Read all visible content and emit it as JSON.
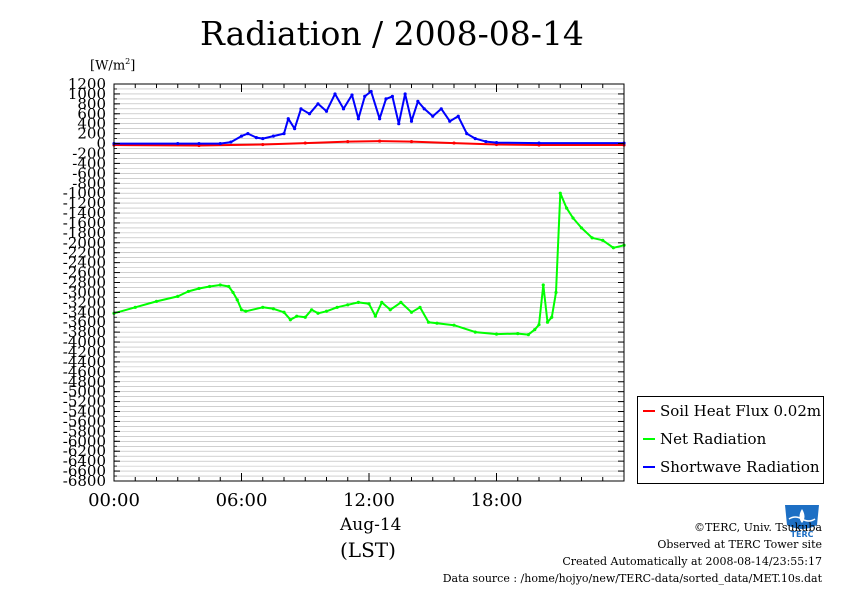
{
  "title": "Radiation / 2008-08-14",
  "unit": {
    "prefix": "[W/m",
    "sup": "2",
    "suffix": "]"
  },
  "xlabel_date": "Aug-14",
  "xlabel_tz": "(LST)",
  "legend": [
    {
      "name": "Soil Heat Flux 0.02m",
      "color": "#ff0000"
    },
    {
      "name": "Net Radiation",
      "color": "#00ff00"
    },
    {
      "name": "Shortwave Radiation",
      "color": "#0000ff"
    }
  ],
  "footer": {
    "copyright": "©TERC, Univ. Tsukuba",
    "site": "Observed at TERC Tower site",
    "created": "Created Automatically at 2008-08-14/23:55:17",
    "source": "Data source : /home/hojyo/new/TERC-data/sorted_data/MET.10s.dat"
  },
  "logo_text": "TERC",
  "chart_data": {
    "type": "line",
    "title": "Radiation / 2008-08-14",
    "ylabel": "[W/m2]",
    "xlabel": "Aug-14 (LST)",
    "ylim": [
      -6800,
      1200
    ],
    "yticks": [
      1200,
      1000,
      800,
      600,
      400,
      200,
      0,
      -200,
      -400,
      -600,
      -800,
      -1000,
      -1200,
      -1400,
      -1600,
      -1800,
      -2000,
      -2200,
      -2400,
      -2600,
      -2800,
      -3000,
      -3200,
      -3400,
      -3600,
      -3800,
      -4000,
      -4200,
      -4400,
      -4600,
      -4800,
      -5000,
      -5200,
      -5400,
      -5600,
      -5800,
      -6000,
      -6200,
      -6400,
      -6600,
      -6800
    ],
    "xlim": [
      0,
      24
    ],
    "xticks": [
      {
        "v": 0,
        "label": "00:00"
      },
      {
        "v": 6,
        "label": "06:00"
      },
      {
        "v": 12,
        "label": "12:00"
      },
      {
        "v": 18,
        "label": "18:00"
      }
    ],
    "grid": true,
    "legend_position": "bottom-right, outside plot",
    "series": [
      {
        "name": "Soil Heat Flux 0.02m",
        "color": "#ff0000",
        "x": [
          0,
          4,
          7,
          9,
          11,
          12.5,
          14,
          16,
          18,
          20,
          24
        ],
        "y": [
          -30,
          -40,
          -20,
          10,
          40,
          50,
          40,
          10,
          -20,
          -30,
          -30
        ]
      },
      {
        "name": "Net Radiation",
        "color": "#00ff00",
        "x": [
          0,
          1,
          2,
          3,
          3.5,
          4,
          4.5,
          5,
          5.4,
          5.6,
          5.8,
          6,
          6.2,
          7,
          7.5,
          8,
          8.3,
          8.6,
          9,
          9.3,
          9.6,
          10,
          10.5,
          11,
          11.5,
          12,
          12.3,
          12.6,
          13,
          13.5,
          14,
          14.4,
          14.8,
          15.2,
          16,
          17,
          18,
          19,
          19.5,
          19.8,
          20,
          20.2,
          20.4,
          20.6,
          20.8,
          21,
          21.3,
          21.6,
          22,
          22.5,
          23,
          23.5,
          24
        ],
        "y": [
          -3420,
          -3300,
          -3180,
          -3080,
          -2980,
          -2920,
          -2880,
          -2850,
          -2880,
          -3000,
          -3150,
          -3350,
          -3380,
          -3300,
          -3330,
          -3400,
          -3550,
          -3480,
          -3500,
          -3350,
          -3420,
          -3380,
          -3300,
          -3250,
          -3200,
          -3230,
          -3480,
          -3200,
          -3350,
          -3200,
          -3400,
          -3300,
          -3600,
          -3620,
          -3660,
          -3800,
          -3840,
          -3830,
          -3850,
          -3750,
          -3650,
          -2850,
          -3600,
          -3500,
          -3000,
          -1000,
          -1300,
          -1500,
          -1700,
          -1900,
          -1950,
          -2100,
          -2050
        ]
      },
      {
        "name": "Shortwave Radiation",
        "color": "#0000ff",
        "x": [
          0,
          3,
          4,
          5,
          5.5,
          6,
          6.3,
          6.7,
          7,
          7.5,
          8,
          8.2,
          8.5,
          8.8,
          9.2,
          9.6,
          10,
          10.4,
          10.8,
          11.2,
          11.5,
          11.8,
          12.1,
          12.5,
          12.8,
          13.1,
          13.4,
          13.7,
          14,
          14.3,
          14.6,
          15,
          15.4,
          15.8,
          16.2,
          16.6,
          17,
          17.5,
          18,
          20,
          24
        ],
        "y": [
          0,
          0,
          0,
          0,
          30,
          150,
          200,
          120,
          100,
          150,
          200,
          500,
          300,
          700,
          600,
          800,
          650,
          1000,
          700,
          980,
          500,
          950,
          1050,
          500,
          900,
          950,
          400,
          1000,
          450,
          850,
          700,
          550,
          700,
          450,
          550,
          200,
          100,
          40,
          20,
          10,
          10
        ]
      }
    ]
  }
}
